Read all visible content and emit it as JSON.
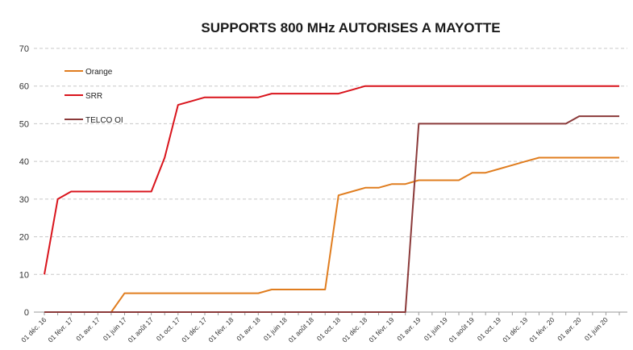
{
  "chart_data": {
    "type": "line",
    "title": "SUPPORTS 800 MHz AUTORISES A MAYOTTE",
    "xlabel": "",
    "ylabel": "",
    "ylim": [
      0,
      70
    ],
    "yticks": [
      "0",
      "10",
      "20",
      "30",
      "40",
      "50",
      "60",
      "70"
    ],
    "grid": true,
    "legend": "top-left",
    "x": [
      "01 déc. 16",
      "01 janv. 17",
      "01 févr. 17",
      "01 mars 17",
      "01 avr. 17",
      "01 mai 17",
      "01 juin 17",
      "01 juil. 17",
      "01 août 17",
      "01 sept. 17",
      "01 oct. 17",
      "01 nov. 17",
      "01 déc. 17",
      "01 janv. 18",
      "01 févr. 18",
      "01 mars 18",
      "01 avr. 18",
      "01 mai 18",
      "01 juin 18",
      "01 juil. 18",
      "01 août 18",
      "01 sept. 18",
      "01 oct. 18",
      "01 nov. 18",
      "01 déc. 18",
      "01 janv. 19",
      "01 févr. 19",
      "01 mars 19",
      "01 avr. 19",
      "01 mai 19",
      "01 juin 19",
      "01 juil. 19",
      "01 août 19",
      "01 sept. 19",
      "01 oct. 19",
      "01 nov. 19",
      "01 déc. 19",
      "01 janv. 20",
      "01 févr. 20",
      "01 mars 20",
      "01 avr. 20",
      "01 mai 20",
      "01 juin 20",
      "01 juil. 20"
    ],
    "xtick_labels": [
      "01 déc. 16",
      "01 févr. 17",
      "01 avr. 17",
      "01 juin 17",
      "01 août 17",
      "01 oct. 17",
      "01 déc. 17",
      "01 févr. 18",
      "01 avr. 18",
      "01 juin 18",
      "01 août 18",
      "01 oct. 18",
      "01 déc. 18",
      "01 févr. 19",
      "01 avr. 19",
      "01 juin 19",
      "01 août 19",
      "01 oct. 19",
      "01 déc. 19",
      "01 févr. 20",
      "01 avr. 20",
      "01 juin 20"
    ],
    "series": [
      {
        "name": "Orange",
        "color": "#e07d1f",
        "values": [
          0,
          0,
          0,
          0,
          0,
          0,
          5,
          5,
          5,
          5,
          5,
          5,
          5,
          5,
          5,
          5,
          5,
          6,
          6,
          6,
          6,
          6,
          31,
          32,
          33,
          33,
          34,
          34,
          35,
          35,
          35,
          35,
          37,
          37,
          38,
          39,
          40,
          41,
          41,
          41,
          41,
          41,
          41,
          41
        ]
      },
      {
        "name": "SRR",
        "color": "#d9141c",
        "values": [
          10,
          30,
          32,
          32,
          32,
          32,
          32,
          32,
          32,
          41,
          55,
          56,
          57,
          57,
          57,
          57,
          57,
          58,
          58,
          58,
          58,
          58,
          58,
          59,
          60,
          60,
          60,
          60,
          60,
          60,
          60,
          60,
          60,
          60,
          60,
          60,
          60,
          60,
          60,
          60,
          60,
          60,
          60,
          60
        ]
      },
      {
        "name": "TELCO OI",
        "color": "#8b3a3a",
        "values": [
          0,
          0,
          0,
          0,
          0,
          0,
          0,
          0,
          0,
          0,
          0,
          0,
          0,
          0,
          0,
          0,
          0,
          0,
          0,
          0,
          0,
          0,
          0,
          0,
          0,
          0,
          0,
          0,
          50,
          50,
          50,
          50,
          50,
          50,
          50,
          50,
          50,
          50,
          50,
          50,
          52,
          52,
          52,
          52
        ]
      }
    ]
  }
}
